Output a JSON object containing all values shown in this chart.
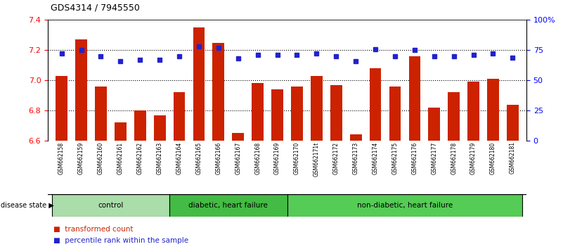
{
  "title": "GDS4314 / 7945550",
  "samples": [
    "GSM662158",
    "GSM662159",
    "GSM662160",
    "GSM662161",
    "GSM662162",
    "GSM662163",
    "GSM662164",
    "GSM662165",
    "GSM662166",
    "GSM662167",
    "GSM662168",
    "GSM662169",
    "GSM662170",
    "GSM662171t",
    "GSM662172",
    "GSM662173",
    "GSM662174",
    "GSM662175",
    "GSM662176",
    "GSM662177",
    "GSM662178",
    "GSM662179",
    "GSM662180",
    "GSM662181"
  ],
  "bar_values": [
    7.03,
    7.27,
    6.96,
    6.72,
    6.8,
    6.77,
    6.92,
    7.35,
    7.25,
    6.65,
    6.98,
    6.94,
    6.96,
    7.03,
    6.97,
    6.64,
    7.08,
    6.96,
    7.16,
    6.82,
    6.92,
    6.99,
    7.01,
    6.84
  ],
  "dot_values": [
    72,
    75,
    70,
    66,
    67,
    67,
    70,
    78,
    77,
    68,
    71,
    71,
    71,
    72,
    70,
    66,
    76,
    70,
    75,
    70,
    70,
    71,
    72,
    69
  ],
  "bar_color": "#cc2200",
  "dot_color": "#2222cc",
  "ylim_left": [
    6.6,
    7.4
  ],
  "ylim_right": [
    0,
    100
  ],
  "yticks_left": [
    6.6,
    6.8,
    7.0,
    7.2,
    7.4
  ],
  "yticks_right": [
    0,
    25,
    50,
    75,
    100
  ],
  "ytick_labels_right": [
    "0",
    "25",
    "50",
    "75",
    "100%"
  ],
  "grid_values": [
    6.8,
    7.0,
    7.2
  ],
  "group_defs": [
    {
      "start": 0,
      "end": 6,
      "label": "control",
      "color": "#aaddaa"
    },
    {
      "start": 6,
      "end": 12,
      "label": "diabetic, heart failure",
      "color": "#44bb44"
    },
    {
      "start": 12,
      "end": 24,
      "label": "non-diabetic, heart failure",
      "color": "#55cc55"
    }
  ],
  "disease_state_label": "disease state",
  "legend_items": [
    {
      "color": "#cc2200",
      "label": "transformed count"
    },
    {
      "color": "#2222cc",
      "label": "percentile rank within the sample"
    }
  ],
  "bar_width": 0.6,
  "background_color": "#ffffff",
  "tick_area_color": "#d3d3d3"
}
